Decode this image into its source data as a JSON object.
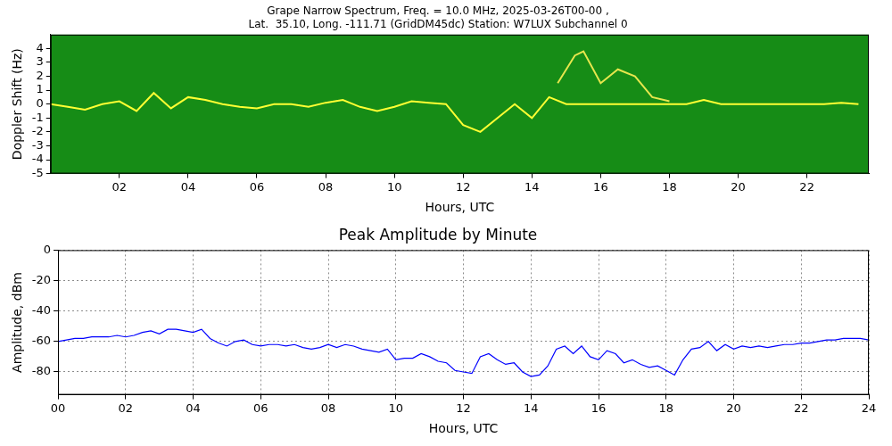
{
  "chart_data": [
    {
      "type": "line",
      "title": [
        "Grape Narrow Spectrum, Freq. = 10.0 MHz, 2025-03-26T00-00 ,",
        "Lat.  35.10, Long. -111.71 (GridDM45dc) Station: W7LUX Subchannel 0"
      ],
      "x_label": "Hours, UTC",
      "y_label": "Doppler Shift (Hz)",
      "xlim": [
        0,
        23.8
      ],
      "ylim": [
        -5,
        5
      ],
      "xticks": [
        {
          "value": 2,
          "label": "02"
        },
        {
          "value": 4,
          "label": "04"
        },
        {
          "value": 6,
          "label": "06"
        },
        {
          "value": 8,
          "label": "08"
        },
        {
          "value": 10,
          "label": "10"
        },
        {
          "value": 12,
          "label": "12"
        },
        {
          "value": 14,
          "label": "14"
        },
        {
          "value": 16,
          "label": "16"
        },
        {
          "value": 18,
          "label": "18"
        },
        {
          "value": 20,
          "label": "20"
        },
        {
          "value": 22,
          "label": "22"
        }
      ],
      "yticks": [
        -5,
        -4,
        -3,
        -2,
        -1,
        0,
        1,
        2,
        3,
        4
      ],
      "grid": false,
      "series": [
        {
          "color": "#ffff33",
          "x": [
            0,
            0.5,
            1,
            1.5,
            2,
            2.5,
            3,
            3.5,
            4,
            4.5,
            5,
            5.5,
            6,
            6.5,
            7,
            7.5,
            8,
            8.5,
            9,
            9.5,
            10,
            10.5,
            11,
            11.5,
            12,
            12.5,
            13,
            13.5,
            14,
            14.5,
            15,
            15.5,
            16,
            16.5,
            17,
            17.5,
            18,
            18.5,
            19,
            19.5,
            20,
            20.5,
            21,
            21.5,
            22,
            22.5,
            23,
            23.5
          ],
          "values": [
            0,
            -0.2,
            -0.4,
            0,
            0.2,
            -0.5,
            0.8,
            -0.3,
            0.5,
            0.3,
            0,
            -0.2,
            -0.3,
            0,
            0,
            -0.2,
            0.1,
            0.3,
            -0.2,
            -0.5,
            -0.2,
            0.2,
            0.1,
            0,
            -1.5,
            -2,
            -1,
            0,
            -1,
            0.5,
            0,
            0,
            0,
            0,
            0,
            0,
            0,
            0,
            0.3,
            0,
            0,
            0,
            0,
            0,
            0,
            0,
            0.1,
            0
          ]
        },
        {
          "color": "#e6e64d",
          "x": [
            14.75,
            15,
            15.25,
            15.5,
            16,
            16.25,
            16.5,
            17,
            17.5,
            18
          ],
          "values": [
            1.5,
            2.5,
            3.5,
            3.8,
            1.5,
            2,
            2.5,
            2,
            0.5,
            0.2
          ]
        }
      ]
    },
    {
      "type": "line",
      "title": "Peak Amplitude by Minute",
      "x_label": "Hours, UTC",
      "y_label": "Amplitude, dBm",
      "xlim": [
        0,
        24
      ],
      "ylim": [
        -95,
        0
      ],
      "xticks": [
        {
          "value": 0,
          "label": "00"
        },
        {
          "value": 2,
          "label": "02"
        },
        {
          "value": 4,
          "label": "04"
        },
        {
          "value": 6,
          "label": "06"
        },
        {
          "value": 8,
          "label": "08"
        },
        {
          "value": 10,
          "label": "10"
        },
        {
          "value": 12,
          "label": "12"
        },
        {
          "value": 14,
          "label": "14"
        },
        {
          "value": 16,
          "label": "16"
        },
        {
          "value": 18,
          "label": "18"
        },
        {
          "value": 20,
          "label": "20"
        },
        {
          "value": 22,
          "label": "22"
        },
        {
          "value": 24,
          "label": "24"
        }
      ],
      "yticks": [
        -80,
        -60,
        -40,
        -20,
        0
      ],
      "grid": true,
      "x": [
        0,
        0.25,
        0.5,
        0.75,
        1,
        1.25,
        1.5,
        1.75,
        2,
        2.25,
        2.5,
        2.75,
        3,
        3.25,
        3.5,
        3.75,
        4,
        4.25,
        4.5,
        4.75,
        5,
        5.25,
        5.5,
        5.75,
        6,
        6.25,
        6.5,
        6.75,
        7,
        7.25,
        7.5,
        7.75,
        8,
        8.25,
        8.5,
        8.75,
        9,
        9.25,
        9.5,
        9.75,
        10,
        10.25,
        10.5,
        10.75,
        11,
        11.25,
        11.5,
        11.75,
        12,
        12.25,
        12.5,
        12.75,
        13,
        13.25,
        13.5,
        13.75,
        14,
        14.25,
        14.5,
        14.75,
        15,
        15.25,
        15.5,
        15.75,
        16,
        16.25,
        16.5,
        16.75,
        17,
        17.25,
        17.5,
        17.75,
        18,
        18.25,
        18.5,
        18.75,
        19,
        19.25,
        19.5,
        19.75,
        20,
        20.25,
        20.5,
        20.75,
        21,
        21.25,
        21.5,
        21.75,
        22,
        22.25,
        22.5,
        22.75,
        23,
        23.25,
        23.5,
        23.75,
        24
      ],
      "series": [
        {
          "color": "#0000ff",
          "values": [
            -60,
            -59,
            -58,
            -58,
            -57,
            -57,
            -57,
            -56,
            -57,
            -56,
            -54,
            -53,
            -55,
            -52,
            -52,
            -53,
            -54,
            -52,
            -58,
            -61,
            -63,
            -60,
            -59,
            -62,
            -63,
            -62,
            -62,
            -63,
            -62,
            -64,
            -65,
            -64,
            -62,
            -64,
            -62,
            -63,
            -65,
            -66,
            -67,
            -65,
            -72,
            -71,
            -71,
            -68,
            -70,
            -73,
            -74,
            -79,
            -80,
            -81,
            -70,
            -68,
            -72,
            -75,
            -74,
            -80,
            -83,
            -82,
            -76,
            -65,
            -63,
            -68,
            -63,
            -70,
            -72,
            -66,
            -68,
            -74,
            -72,
            -75,
            -77,
            -76,
            -79,
            -82,
            -72,
            -65,
            -64,
            -60,
            -66,
            -62,
            -65,
            -63,
            -64,
            -63,
            -64,
            -63,
            -62,
            -62,
            -61,
            -61,
            -60,
            -59,
            -59,
            -58,
            -58,
            -58,
            -59
          ]
        }
      ]
    }
  ]
}
